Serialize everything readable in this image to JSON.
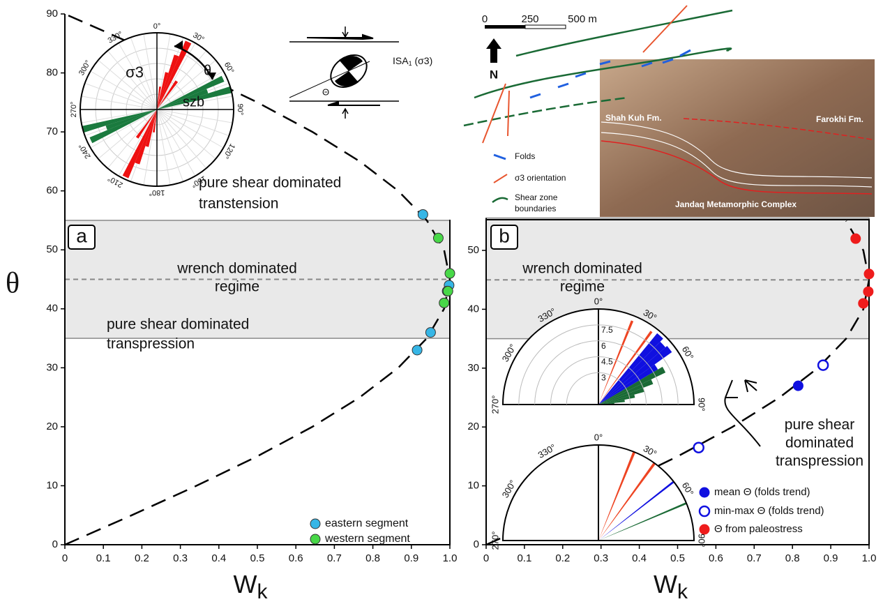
{
  "y_label": "θ",
  "chart_data": [
    {
      "type": "scatter",
      "panel_label": "a",
      "xlabel": "W",
      "xlabel_subscript": "k",
      "xlim": [
        0,
        1
      ],
      "xticks": [
        0,
        0.1,
        0.2,
        0.3,
        0.4,
        0.5,
        0.6,
        0.7,
        0.8,
        0.9,
        {
          "value": 1,
          "label": "1.0"
        }
      ],
      "ylim": [
        0,
        90
      ],
      "yticks": [
        0,
        10,
        20,
        30,
        40,
        50,
        60,
        70,
        80,
        90
      ],
      "band": [
        35,
        55
      ],
      "dashed_line": 45,
      "annotations": [
        [
          "pure shear dominated",
          "transtension"
        ],
        [
          "wrench dominated",
          "regime"
        ],
        [
          "pure shear dominated",
          "transpression"
        ]
      ],
      "curve": {
        "x": [
          0,
          0.174,
          0.342,
          0.5,
          0.643,
          0.766,
          0.866,
          0.94,
          0.985,
          1,
          0.985,
          0.94,
          0.866,
          0.766,
          0.643,
          0.5,
          0.342,
          0.174,
          0
        ],
        "y": [
          0,
          5,
          10,
          15,
          20,
          25,
          30,
          35,
          40,
          45,
          50,
          55,
          60,
          65,
          70,
          75,
          80,
          85,
          90
        ]
      },
      "series": [
        {
          "name": "eastern segment",
          "color": "#36b6e6",
          "marker": "filled",
          "x": [
            0.93,
            0.998,
            0.993,
            0.95,
            0.915
          ],
          "values": [
            56,
            44,
            43,
            36,
            33
          ]
        },
        {
          "name": "western segment",
          "color": "#48d848",
          "marker": "filled",
          "x": [
            0.97,
            1.0,
            0.995,
            0.985
          ],
          "values": [
            52,
            46,
            43,
            41
          ]
        }
      ]
    },
    {
      "type": "scatter",
      "panel_label": "b",
      "xlabel": "W",
      "xlabel_subscript": "k",
      "xlim": [
        0,
        1
      ],
      "xticks": [
        0,
        0.1,
        0.2,
        0.3,
        0.4,
        0.5,
        0.6,
        0.7,
        0.8,
        0.9,
        {
          "value": 1,
          "label": "1.0"
        }
      ],
      "ylim": [
        0,
        55.5
      ],
      "yticks": [
        0,
        10,
        20,
        30,
        40,
        50
      ],
      "band": [
        35,
        55.5
      ],
      "dashed_line": 45,
      "annotations": [
        [
          "wrench dominated",
          "regime"
        ],
        [
          "pure shear",
          "dominated",
          "transpression"
        ]
      ],
      "curve": {
        "x": [
          0,
          0.174,
          0.342,
          0.5,
          0.643,
          0.766,
          0.866,
          0.94,
          0.985,
          1,
          0.985,
          0.94
        ],
        "y": [
          0,
          5,
          10,
          15,
          20,
          25,
          30,
          35,
          40,
          45,
          50,
          55
        ]
      },
      "series": [
        {
          "name": "mean Θ (folds trend)",
          "color": "#1010e0",
          "marker": "filled",
          "x": [
            0.815
          ],
          "values": [
            27
          ]
        },
        {
          "name": "min-max Θ (folds trend)",
          "color": "#1010e0",
          "marker": "open",
          "x": [
            0.88,
            0.555
          ],
          "values": [
            30.5,
            16.5
          ]
        },
        {
          "name": "Θ from paleostress",
          "color": "#ee1c1c",
          "marker": "filled",
          "x": [
            0.965,
            1.0,
            0.998,
            0.985
          ],
          "values": [
            52,
            46,
            43,
            41
          ]
        }
      ]
    }
  ],
  "rose_a": {
    "angles": [
      {
        "value": 0,
        "label": "0°"
      },
      {
        "value": 30,
        "label": "30°"
      },
      {
        "value": 60,
        "label": "60°"
      },
      {
        "value": 90,
        "label": "90°"
      },
      {
        "value": 120,
        "label": "120°"
      },
      {
        "value": 150,
        "label": "150°"
      },
      {
        "value": 180,
        "label": "180°"
      },
      {
        "value": 210,
        "label": "210°"
      },
      {
        "value": 240,
        "label": "240°"
      },
      {
        "value": 270,
        "label": "270°"
      },
      {
        "value": 300,
        "label": "300°"
      },
      {
        "value": 330,
        "label": "330°"
      }
    ],
    "rlim": 10,
    "sigma3_label": "σ3",
    "szb_label": "szb",
    "theta_label": "θ",
    "sigma3": {
      "color": "#ee1111",
      "azimuth": [
        8,
        15,
        20,
        25,
        35
      ],
      "values": [
        3,
        5,
        7.5,
        9.7,
        4.5
      ]
    },
    "szb": {
      "color": "#1a7a3e",
      "azimuth": [
        65,
        70,
        75
      ],
      "values": [
        9.5,
        7,
        10
      ]
    }
  },
  "schematic": {
    "isa": "ISA",
    "isa_sub": "1",
    "isa_rest": " (σ3)",
    "theta": "Θ"
  },
  "map": {
    "scale": [
      "0",
      "250",
      "500 m"
    ],
    "north": "N",
    "legend": [
      "Folds",
      "σ3  orientation",
      "Shear zone",
      "boundaries"
    ]
  },
  "photo": {
    "labels": [
      "Shah Kuh Fm.",
      "Farokhi Fm.",
      "Jandaq Metamorphic Complex"
    ]
  },
  "rose_b": {
    "angles": [
      {
        "value": 0,
        "label": "0°"
      },
      {
        "value": 30,
        "label": "30°"
      },
      {
        "value": 60,
        "label": "60°"
      },
      {
        "value": 90,
        "label": "90°"
      },
      {
        "value": 270,
        "label": "270°"
      },
      {
        "value": 300,
        "label": "300°"
      },
      {
        "value": 330,
        "label": "330°"
      }
    ],
    "rlim": 9,
    "rticks": [
      3,
      4.5,
      6,
      7.5
    ],
    "upper": {
      "red": {
        "color": "#ee4422",
        "azimuth": [
          22,
          36
        ],
        "values": [
          8.5,
          8.5
        ]
      },
      "blue": {
        "color": "#1010e0",
        "azimuth": [
          42,
          47,
          52,
          57
        ],
        "values": [
          8.7,
          8.3,
          8.5,
          6.5
        ]
      },
      "green": {
        "color": "#1a6a35",
        "azimuth": [
          62,
          67,
          72,
          77,
          82,
          87
        ],
        "values": [
          7,
          5.5,
          4.5,
          3.5,
          2.5,
          1.5
        ]
      }
    },
    "lower": {
      "red": {
        "color": "#ee4422",
        "azimuth": [
          22,
          36
        ],
        "values": [
          9,
          9
        ]
      },
      "blue": {
        "color": "#1010e0",
        "azimuth": [
          52
        ],
        "values": [
          9
        ]
      },
      "green": {
        "color": "#1a6a35",
        "azimuth": [
          67
        ],
        "values": [
          9
        ]
      }
    }
  }
}
